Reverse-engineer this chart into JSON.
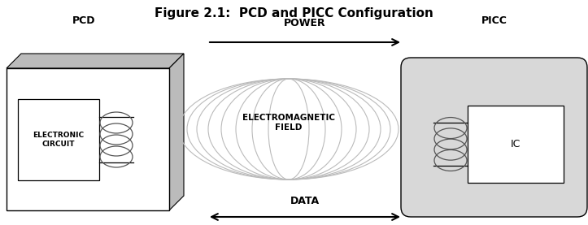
{
  "title": "Figure 2.1:  PCD and PICC Configuration",
  "title_fontsize": 11,
  "title_fontweight": "bold",
  "bg_color": "#ffffff",
  "pcd_label": "PCD",
  "picc_label": "PICC",
  "power_label": "POWER",
  "data_label": "DATA",
  "em_field_label": "ELECTROMAGNETIC\nFIELD",
  "circuit_label": "ELECTRONIC\nCIRCUIT",
  "ic_label": "IC",
  "label_fontsize": 9,
  "label_fontweight": "bold",
  "box_edge_color": "#000000",
  "box_face_color": "#ffffff",
  "pcd_3d_color": "#bbbbbb",
  "picc_bg_color": "#d8d8d8",
  "ellipse_edge_color": "#bbbbbb",
  "coil_color": "#555555"
}
